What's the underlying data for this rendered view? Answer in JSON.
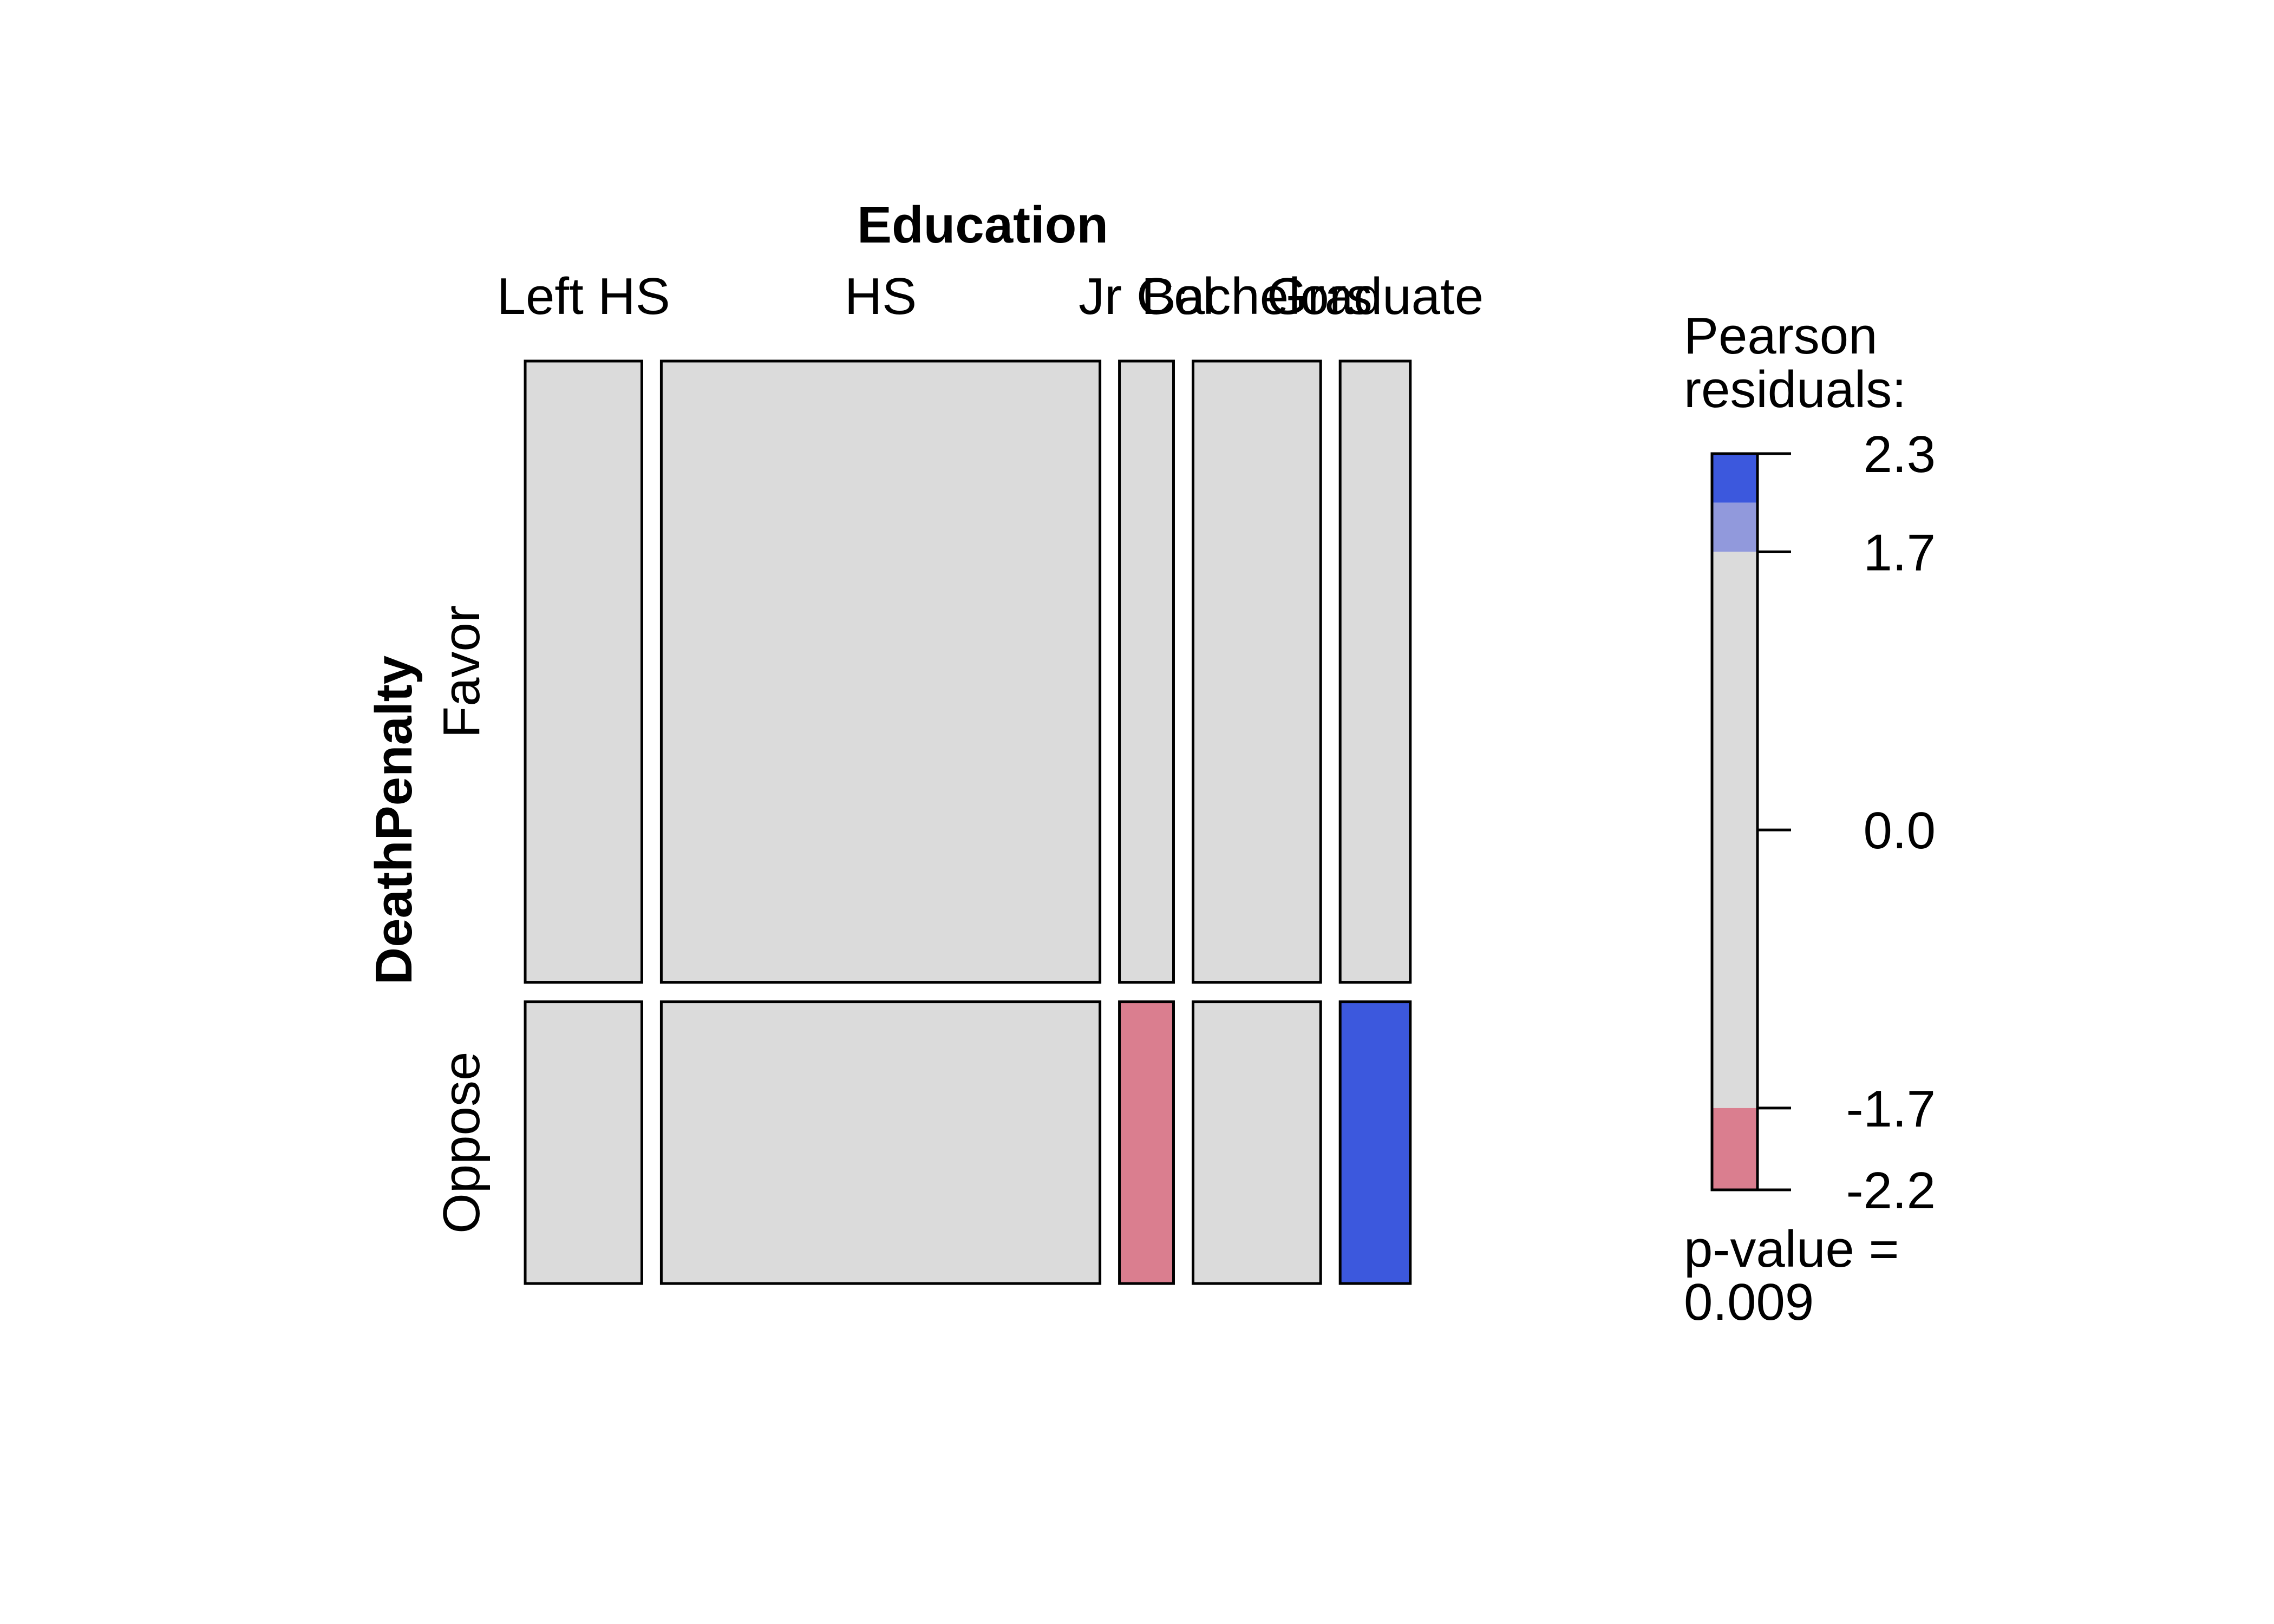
{
  "chart_data": {
    "type": "mosaic",
    "x_variable": "Education",
    "y_variable": "DeathPenalty",
    "x_categories": [
      "Left HS",
      "HS",
      "Jr Col",
      "Bachelors",
      "Graduate"
    ],
    "y_categories": [
      "Favor",
      "Oppose"
    ],
    "x_proportions": [
      0.138,
      0.519,
      0.064,
      0.151,
      0.083
    ],
    "y_proportions": [
      0.688,
      0.312
    ],
    "residual_shading": [
      [
        "none",
        "none",
        "none",
        "none",
        "none"
      ],
      [
        "none",
        "none",
        "negative-moderate",
        "none",
        "positive-strong"
      ]
    ],
    "legend": {
      "title_line1": "Pearson",
      "title_line2": "residuals:",
      "range": [
        -2.2,
        2.3
      ],
      "ticks": [
        "2.3",
        "1.7",
        "0.0",
        "-1.7",
        "-2.2"
      ],
      "tick_values": [
        2.3,
        1.7,
        0.0,
        -1.7,
        -2.2
      ],
      "bands": [
        {
          "from": 2.0,
          "to": 2.3,
          "color": "#3c58dd"
        },
        {
          "from": 1.7,
          "to": 2.0,
          "color": "#9199dc"
        },
        {
          "from": -1.7,
          "to": 1.7,
          "color": "#dbdbdb"
        },
        {
          "from": -2.2,
          "to": -1.7,
          "color": "#da7e8f"
        }
      ]
    },
    "p_value_label": "p-value =",
    "p_value": "0.009"
  },
  "colors": {
    "neutral": "#dbdbdb",
    "positive-strong": "#3c58dd",
    "positive-moderate": "#9199dc",
    "negative-moderate": "#da7e8f",
    "negative-strong": "#da4363"
  }
}
